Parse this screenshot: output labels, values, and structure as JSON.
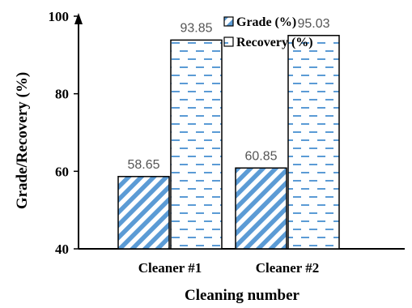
{
  "chart_data": {
    "type": "bar",
    "categories": [
      "Cleaner #1",
      "Cleaner #2"
    ],
    "series": [
      {
        "name": "Grade (%)",
        "values": [
          58.65,
          60.85
        ],
        "pattern": "diagonal-stripes",
        "color": "#5b9bd5"
      },
      {
        "name": "Recovery (%)",
        "values": [
          93.85,
          95.03
        ],
        "pattern": "dashes",
        "color": "#5b9bd5"
      }
    ],
    "data_labels": [
      [
        "58.65",
        "60.85"
      ],
      [
        "93.85",
        "95.03"
      ]
    ],
    "xlabel": "Cleaning number",
    "ylabel": "Grade/Recovery (%)",
    "ylim": [
      40,
      100
    ],
    "yticks": [
      40,
      60,
      80,
      100
    ],
    "legend": {
      "position": "top-center",
      "entries": [
        "Grade (%)",
        "Recovery (%)"
      ]
    },
    "grid": false
  }
}
